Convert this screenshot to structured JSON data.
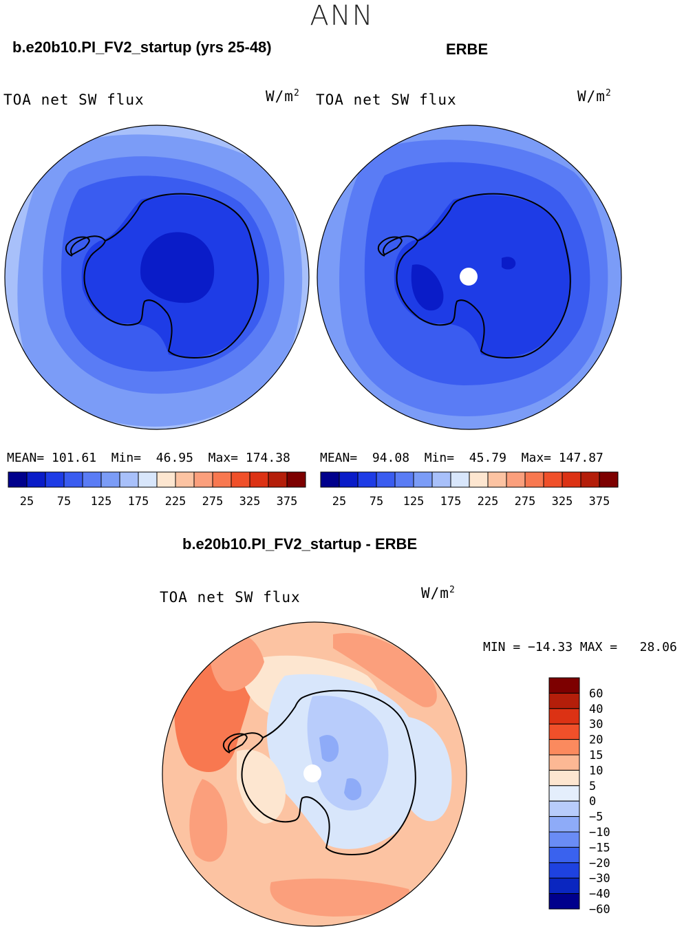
{
  "header": {
    "title": "ANN"
  },
  "panels": [
    {
      "case_title": "b.e20b10.PI_FV2_startup (yrs 25-48)",
      "variable": "TOA net SW flux",
      "units": "W/m",
      "units_sup": "2",
      "stats": {
        "mean_label": "MEAN=",
        "mean": "101.61",
        "min_label": "Min=",
        "min": "46.95",
        "max_label": "Max=",
        "max": "174.38"
      }
    },
    {
      "case_title": "ERBE",
      "variable": "TOA net SW flux",
      "units": "W/m",
      "units_sup": "2",
      "stats": {
        "mean_label": "MEAN=",
        "mean": "94.08",
        "min_label": "Min=",
        "min": "45.79",
        "max_label": "Max=",
        "max": "147.87"
      }
    }
  ],
  "colorbar_top": {
    "colors": [
      "#00008c",
      "#0a1cc8",
      "#1e3ce6",
      "#3a5cf0",
      "#5a7cf5",
      "#7b9cf7",
      "#a8c0fa",
      "#d8e6fb",
      "#fde6d0",
      "#fcc3a2",
      "#fb9f7c",
      "#f87850",
      "#f0502a",
      "#dc3214",
      "#b41e0a",
      "#7d0000"
    ],
    "tick_labels": [
      "25",
      "75",
      "125",
      "175",
      "225",
      "275",
      "325",
      "375"
    ]
  },
  "difference": {
    "title": "b.e20b10.PI_FV2_startup - ERBE",
    "variable": "TOA net SW flux",
    "units": "W/m",
    "units_sup": "2",
    "min_label": "MIN = ",
    "min": "−14.33",
    "max_label": "MAX = ",
    "max": "28.06"
  },
  "colorbar_diff": {
    "colors": [
      "#7d0000",
      "#b41e0a",
      "#dc3214",
      "#f0502a",
      "#fb8a5e",
      "#fcb894",
      "#fde6d0",
      "#e4eefc",
      "#b8ccfb",
      "#8eabf8",
      "#6a8cf5",
      "#3a62ee",
      "#1e42e0",
      "#0a26c0",
      "#00008c"
    ],
    "tick_labels": [
      "60",
      "40",
      "30",
      "20",
      "15",
      "10",
      "5",
      "0",
      "−5",
      "−10",
      "−15",
      "−20",
      "−30",
      "−40",
      "−60"
    ]
  },
  "map_colors": {
    "ring_outer": "#a8c0fa",
    "ring_mid": "#7b9cf7",
    "ring_inner": "#5a7cf5",
    "ring_deep": "#3a5cf0",
    "continent": "#1e3ce6",
    "plateau": "#0a1cc8",
    "diff_base": "#fcc3a2",
    "diff_warm": "#fb9f7c",
    "diff_hot": "#f87850",
    "diff_light": "#fde6d0",
    "diff_cool": "#d8e6fb",
    "diff_cooler": "#b8ccfb",
    "diff_coolest": "#8eabf8"
  }
}
